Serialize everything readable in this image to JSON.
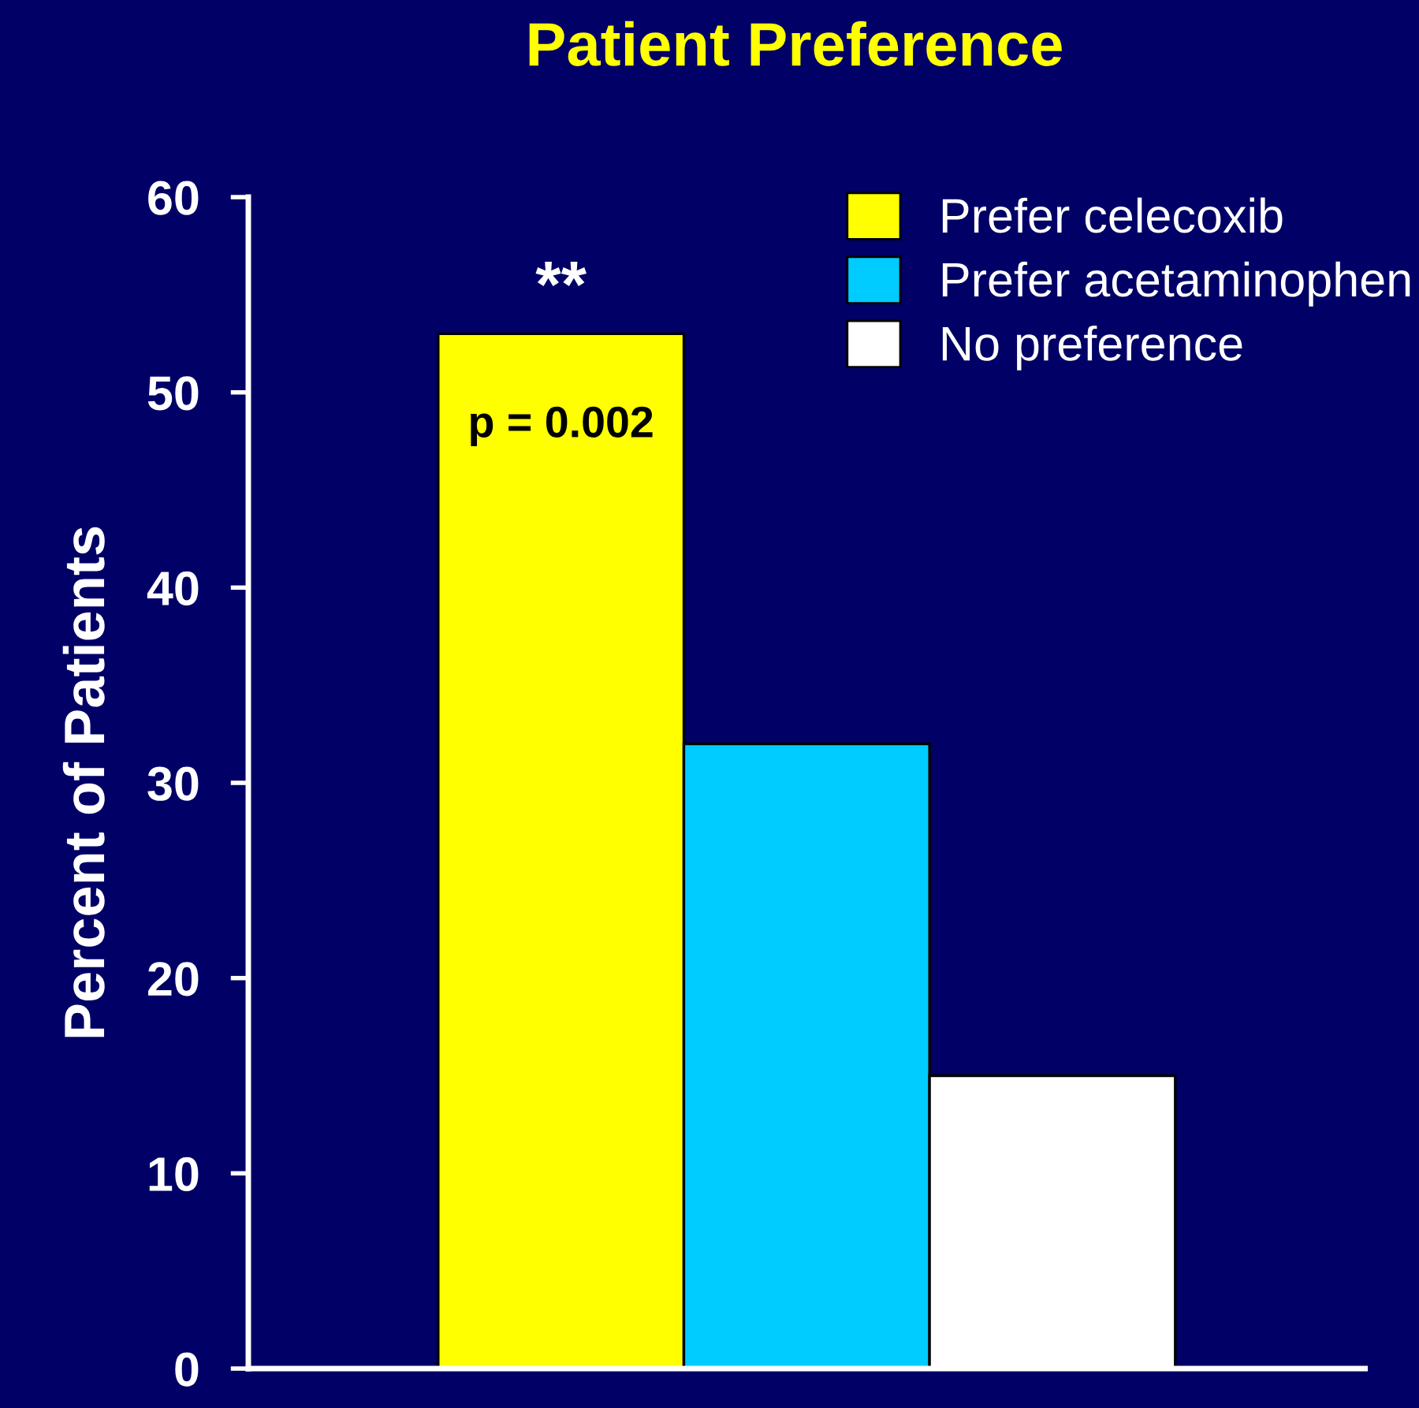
{
  "chart_data": {
    "type": "bar",
    "title": "Patient Preference",
    "ylabel": "Percent of Patients",
    "categories": [
      null
    ],
    "series": [
      {
        "name": "Prefer celecoxib",
        "color": "#ffff00",
        "values": [
          53
        ]
      },
      {
        "name": "Prefer acetaminophen",
        "color": "#00ccff",
        "values": [
          32
        ]
      },
      {
        "name": "No preference",
        "color": "#ffffff",
        "values": [
          15
        ]
      }
    ],
    "ylim": [
      0,
      60
    ],
    "yticks": [
      0,
      10,
      20,
      30,
      40,
      50,
      60
    ],
    "grid": false,
    "legend": "top right",
    "annotations": [
      "**",
      "p = 0.002"
    ]
  }
}
